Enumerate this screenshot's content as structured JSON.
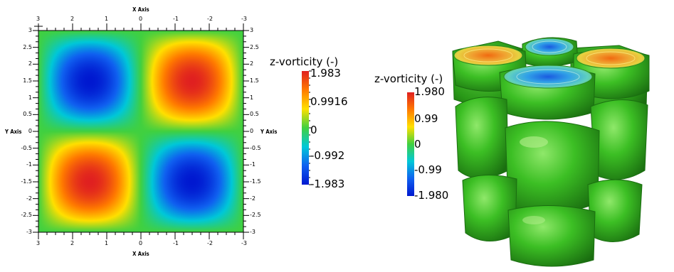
{
  "chart_data": [
    {
      "type": "heatmap",
      "title": "",
      "xlabel": "X Axis",
      "ylabel": "Y Axis",
      "x_ticks_top": [
        "3",
        "2",
        "1",
        "0",
        "-1",
        "-2",
        "-3"
      ],
      "x_ticks_bottom": [
        "3",
        "2",
        "1",
        "0",
        "-1",
        "-2",
        "-3"
      ],
      "y_ticks": [
        "3",
        "2.5",
        "2",
        "1.5",
        "1",
        "0.5",
        "0",
        "-0.5",
        "-1",
        "-1.5",
        "-2",
        "-2.5",
        "-3"
      ],
      "xlim": [
        3,
        -3
      ],
      "ylim": [
        -3,
        3
      ],
      "field": "sin(x)·sin(y) scaled to peak 1.983",
      "extrema": [
        {
          "x": 1.5,
          "y": 1.5,
          "value": -1.983
        },
        {
          "x": -1.5,
          "y": 1.5,
          "value": 1.983
        },
        {
          "x": 1.5,
          "y": -1.5,
          "value": 1.983
        },
        {
          "x": -1.5,
          "y": -1.5,
          "value": -1.983
        }
      ],
      "colorbar": {
        "title": "z-vorticity (-)",
        "min": -1.983,
        "max": 1.983,
        "labels": [
          "1.983",
          "0.9916",
          "0",
          "-0.992",
          "-1.983"
        ],
        "colormap": "jet"
      }
    },
    {
      "type": "other",
      "title": "",
      "description_of_marks": "3D iso-surfaces of z-vorticity in a 2x2x3 lattice of rounded cubes",
      "colorbar": {
        "title": "z-vorticity (-)",
        "min": -1.98,
        "max": 1.98,
        "labels": [
          "1.980",
          "0.99",
          "0",
          "-0.99",
          "-1.980"
        ],
        "colormap": "jet"
      }
    }
  ],
  "colors": {
    "surface_green": "#3fbf2a",
    "surface_dark": "#1f7d14",
    "ring_orange": "#e8a83a",
    "ring_blue": "#3aa0e8"
  }
}
